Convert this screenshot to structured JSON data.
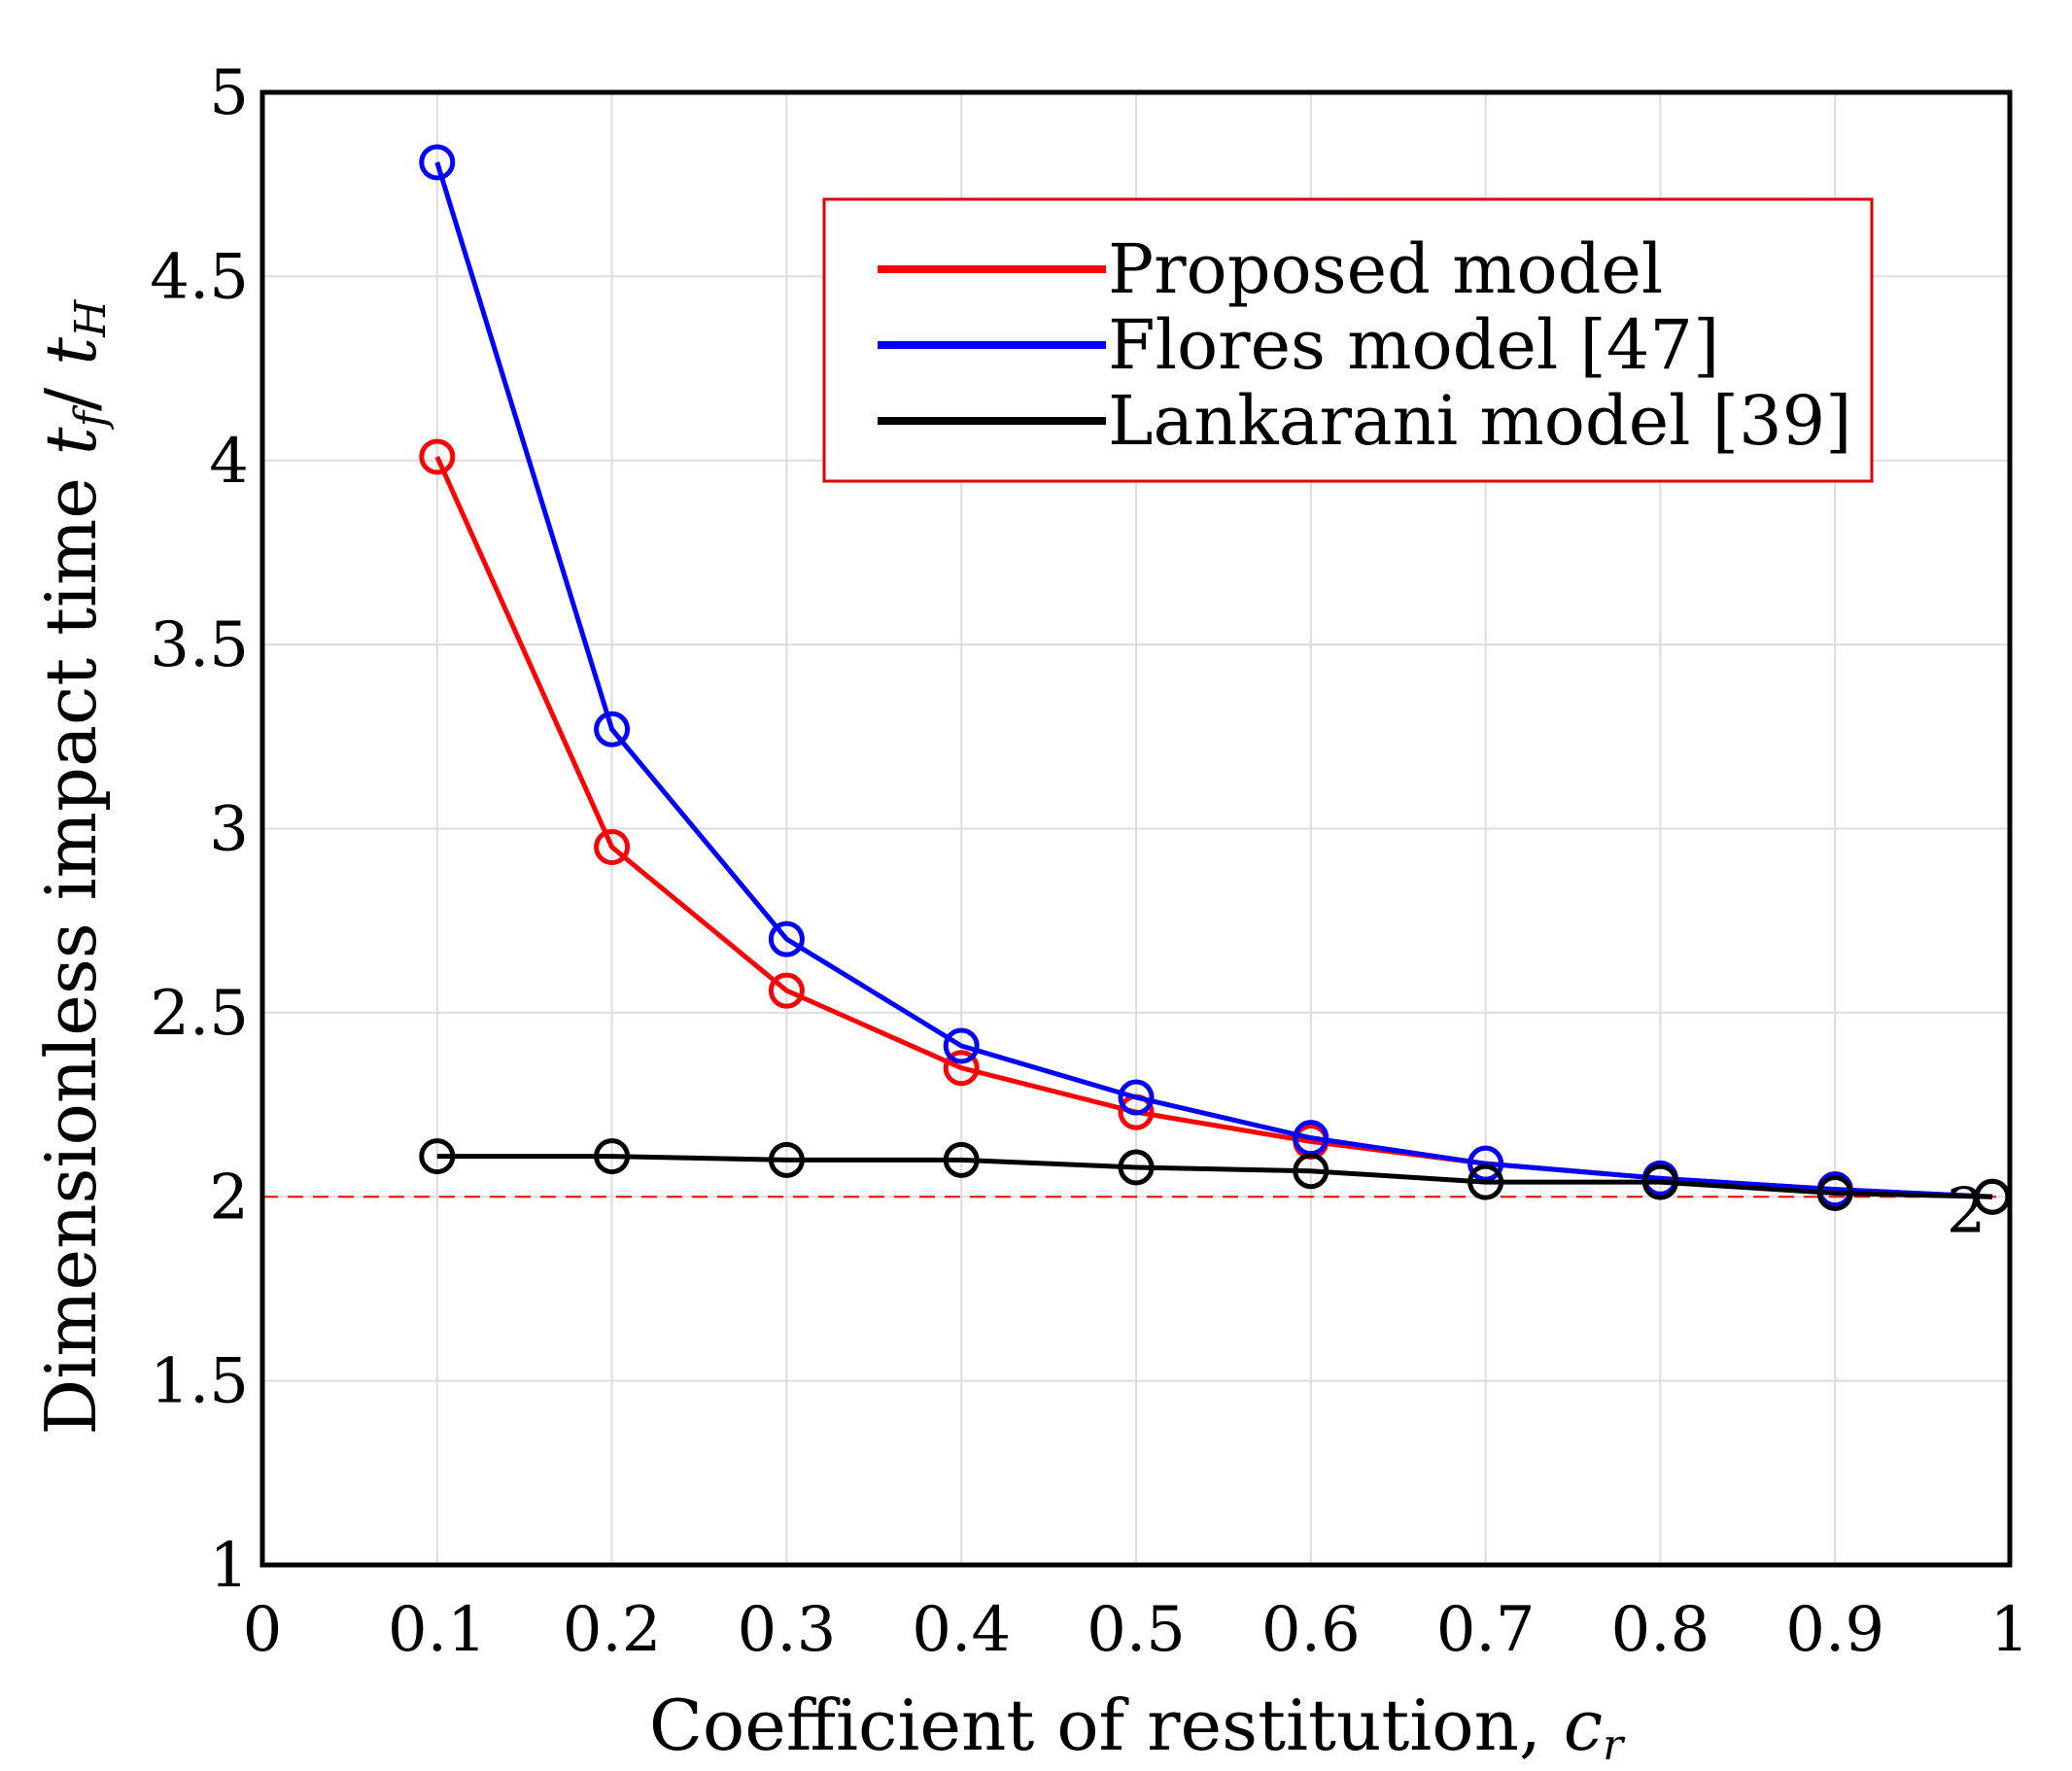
{
  "chart_data": {
    "type": "line",
    "title": "",
    "xlabel": "Coefficient of restitution, ",
    "xlabel_var": "c",
    "xlabel_sub": "r",
    "ylabel": "Dimensionless impact time ",
    "ylabel_num": "t",
    "ylabel_num_sub": "f",
    "ylabel_sep": "/ ",
    "ylabel_den": "t",
    "ylabel_den_sub": "H",
    "xlim": [
      0,
      1
    ],
    "ylim": [
      1,
      5
    ],
    "xticks": [
      "0",
      "0.1",
      "0.2",
      "0.3",
      "0.4",
      "0.5",
      "0.6",
      "0.7",
      "0.8",
      "0.9",
      "1"
    ],
    "yticks": [
      "1",
      "1.5",
      "2",
      "2.5",
      "3",
      "3.5",
      "4",
      "4.5",
      "5"
    ],
    "grid": true,
    "reference_line": {
      "y": 2,
      "color": "#ff0000",
      "style": "dashed"
    },
    "annotation": {
      "text": "2",
      "x": 0.975,
      "y": 2
    },
    "legend_position": "top-right",
    "series": [
      {
        "name": "Proposed model",
        "color": "#ff0000",
        "x": [
          0.1,
          0.2,
          0.3,
          0.4,
          0.5,
          0.6,
          0.7,
          0.8,
          0.9,
          0.99
        ],
        "y": [
          4.01,
          2.95,
          2.56,
          2.35,
          2.23,
          2.15,
          2.09,
          2.05,
          2.02,
          2.0
        ]
      },
      {
        "name": "Flores model [47]",
        "color": "#0000ff",
        "x": [
          0.1,
          0.2,
          0.3,
          0.4,
          0.5,
          0.6,
          0.7,
          0.8,
          0.9,
          0.99
        ],
        "y": [
          4.81,
          3.27,
          2.7,
          2.41,
          2.27,
          2.16,
          2.09,
          2.05,
          2.02,
          2.0
        ]
      },
      {
        "name": "Lankarani model [39]",
        "color": "#000000",
        "x": [
          0.1,
          0.2,
          0.3,
          0.4,
          0.5,
          0.6,
          0.7,
          0.8,
          0.9,
          0.99
        ],
        "y": [
          2.11,
          2.11,
          2.1,
          2.1,
          2.08,
          2.07,
          2.04,
          2.04,
          2.01,
          2.0
        ]
      }
    ]
  }
}
